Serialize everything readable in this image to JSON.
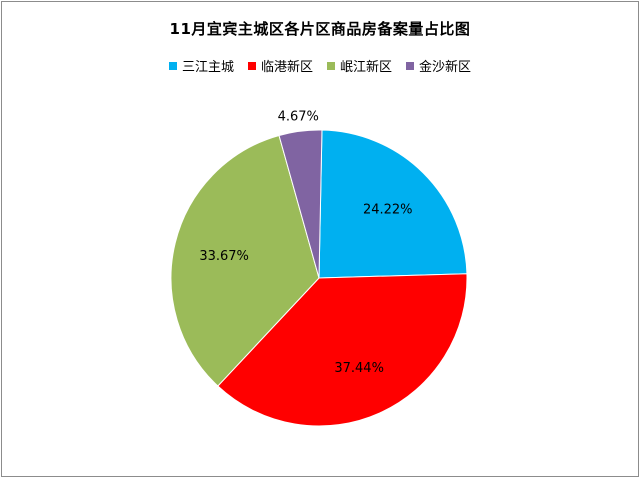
{
  "chart_data": {
    "type": "pie",
    "title": "11月宜宾主城区各片区商品房备案量占比图",
    "legend_position": "top",
    "slices": [
      {
        "name": "三江主城",
        "value": 24.22,
        "label": "24.22%",
        "color": "#00b0f0"
      },
      {
        "name": "临港新区",
        "value": 37.44,
        "label": "37.44%",
        "color": "#ff0000"
      },
      {
        "name": "岷江新区",
        "value": 33.67,
        "label": "33.67%",
        "color": "#9bbb59"
      },
      {
        "name": "金沙新区",
        "value": 4.67,
        "label": "4.67%",
        "color": "#8064a2"
      }
    ]
  }
}
